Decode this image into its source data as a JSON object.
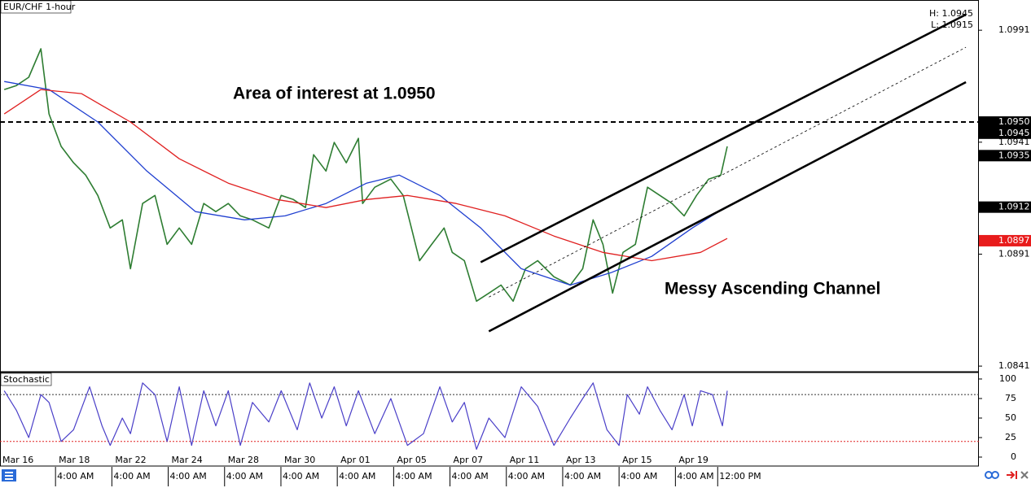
{
  "chart_data": [
    {
      "type": "line",
      "title": "EUR/CHF 1-hour",
      "high_label": "H: 1.0945",
      "low_label": "L: 1.0915",
      "annotations": [
        "Area of interest at 1.0950",
        "Messy Ascending Channel"
      ],
      "xlim": [
        0.03,
        34.77
      ],
      "ylim": [
        1.08385,
        1.10045
      ],
      "xticks": [
        {
          "value": 0,
          "label": "Mar 16"
        },
        {
          "value": 2,
          "label": "Mar 18"
        },
        {
          "value": 4,
          "label": "Mar 22"
        },
        {
          "value": 6,
          "label": "Mar 24"
        },
        {
          "value": 8,
          "label": "Mar 28"
        },
        {
          "value": 10,
          "label": "Mar 30"
        },
        {
          "value": 12,
          "label": "Apr 01"
        },
        {
          "value": 14,
          "label": "Apr 05"
        },
        {
          "value": 16,
          "label": "Apr 07"
        },
        {
          "value": 18,
          "label": "Apr 11"
        },
        {
          "value": 20,
          "label": "Apr 13"
        },
        {
          "value": 22,
          "label": "Apr 15"
        },
        {
          "value": 24,
          "label": "Apr 19"
        }
      ],
      "xticks_time": [
        {
          "value": 2,
          "label": "4:00 AM"
        },
        {
          "value": 4,
          "label": "4:00 AM"
        },
        {
          "value": 6,
          "label": "4:00 AM"
        },
        {
          "value": 8,
          "label": "4:00 AM"
        },
        {
          "value": 10,
          "label": "4:00 AM"
        },
        {
          "value": 12,
          "label": "4:00 AM"
        },
        {
          "value": 14,
          "label": "4:00 AM"
        },
        {
          "value": 16,
          "label": "4:00 AM"
        },
        {
          "value": 18,
          "label": "4:00 AM"
        },
        {
          "value": 20,
          "label": "4:00 AM"
        },
        {
          "value": 22,
          "label": "4:00 AM"
        },
        {
          "value": 24,
          "label": "4:00 AM"
        },
        {
          "value": 25.5,
          "label": "12:00 PM"
        }
      ],
      "yticks": [
        1.0991,
        1.0941,
        1.0891,
        1.0841
      ],
      "price_tags": [
        {
          "value": 1.095,
          "label": "1.0950",
          "color": "#000000"
        },
        {
          "value": 1.0945,
          "label": "1.0945",
          "color": "#000000"
        },
        {
          "value": 1.0935,
          "label": "1.0935",
          "color": "#000000"
        },
        {
          "value": 1.0912,
          "label": "1.0912",
          "color": "#000000"
        },
        {
          "value": 1.0897,
          "label": "1.0897",
          "color": "#e81c1c"
        }
      ],
      "hline": {
        "value": 1.095,
        "color": "#000000"
      },
      "channel": [
        {
          "x": [
            17.09,
            34.31
          ],
          "values": [
            1.08874,
            1.0998
          ],
          "dashed": false
        },
        {
          "x": [
            17.38,
            34.31
          ],
          "values": [
            1.08565,
            1.09678
          ],
          "dashed": false
        },
        {
          "x": [
            17.38,
            34.31
          ],
          "values": [
            1.08718,
            1.09834
          ],
          "dashed": true
        }
      ],
      "series": [
        {
          "color": "#2e7d32",
          "width": 1.6,
          "x": [
            0.18,
            0.61,
            1.05,
            1.48,
            1.77,
            2.2,
            2.64,
            3.07,
            3.5,
            3.94,
            4.37,
            4.66,
            5.09,
            5.53,
            5.96,
            6.39,
            6.83,
            7.26,
            7.69,
            8.13,
            8.56,
            8.99,
            9.57,
            10.01,
            10.44,
            10.87,
            11.16,
            11.6,
            11.89,
            12.32,
            12.75,
            12.9,
            13.33,
            13.9,
            14.34,
            14.63,
            14.92,
            15.35,
            15.79,
            16.08,
            16.51,
            16.94,
            17.38,
            17.81,
            18.24,
            18.68,
            19.11,
            19.69,
            20.27,
            20.71,
            21.08,
            21.43,
            21.77,
            22.14,
            22.58,
            23.01,
            23.45,
            23.88,
            24.31,
            24.75,
            25.18,
            25.61,
            25.84
          ],
          "values": [
            1.09645,
            1.09663,
            1.097,
            1.09827,
            1.09536,
            1.09391,
            1.09318,
            1.09263,
            1.09172,
            1.09027,
            1.09063,
            1.08845,
            1.09136,
            1.09172,
            1.08954,
            1.09027,
            1.08954,
            1.09136,
            1.091,
            1.09136,
            1.09081,
            1.09063,
            1.09027,
            1.09172,
            1.09154,
            1.09118,
            1.09354,
            1.09281,
            1.09409,
            1.09318,
            1.09427,
            1.09136,
            1.09209,
            1.09245,
            1.09172,
            1.09027,
            1.08881,
            1.08954,
            1.09027,
            1.08918,
            1.08881,
            1.087,
            1.08736,
            1.08772,
            1.087,
            1.08845,
            1.08881,
            1.08809,
            1.08772,
            1.08845,
            1.09063,
            1.08954,
            1.08736,
            1.08918,
            1.08954,
            1.09209,
            1.09172,
            1.09136,
            1.09081,
            1.09172,
            1.09245,
            1.09263,
            1.09391
          ]
        },
        {
          "color": "#1f3fd0",
          "width": 1.3,
          "x": [
            0.18,
            1.77,
            3.5,
            5.24,
            6.97,
            8.71,
            10.15,
            11.6,
            13.04,
            14.2,
            15.64,
            17.09,
            18.53,
            20.27,
            21.71,
            23.16,
            24.6,
            25.76
          ],
          "values": [
            1.09681,
            1.09645,
            1.095,
            1.09281,
            1.091,
            1.09063,
            1.09081,
            1.09136,
            1.09227,
            1.09263,
            1.09172,
            1.09027,
            1.08845,
            1.08772,
            1.08827,
            1.089,
            1.09027,
            1.09118
          ]
        },
        {
          "color": "#e02020",
          "width": 1.3,
          "x": [
            0.18,
            1.48,
            2.92,
            4.66,
            6.39,
            8.13,
            9.86,
            11.6,
            13.04,
            14.49,
            16.22,
            17.95,
            19.69,
            21.42,
            23.16,
            24.89,
            25.84
          ],
          "values": [
            1.09536,
            1.09645,
            1.09627,
            1.095,
            1.09336,
            1.09227,
            1.09154,
            1.09118,
            1.09154,
            1.09172,
            1.09136,
            1.09081,
            1.08991,
            1.08918,
            1.08881,
            1.08918,
            1.0898
          ]
        }
      ]
    },
    {
      "type": "line",
      "title": "Stochastic",
      "ylim": [
        -10.4,
        108.3
      ],
      "yticks": [
        0,
        25,
        50,
        75,
        100
      ],
      "levels": [
        {
          "value": 80,
          "color": "#333333"
        },
        {
          "value": 20,
          "color": "#e02020"
        }
      ],
      "series": [
        {
          "color": "#4a3fc8",
          "width": 1.2,
          "x": [
            0.18,
            0.61,
            1.05,
            1.48,
            1.77,
            2.2,
            2.64,
            3.21,
            3.65,
            3.94,
            4.37,
            4.66,
            5.09,
            5.53,
            5.96,
            6.39,
            6.83,
            7.26,
            7.69,
            8.13,
            8.56,
            8.99,
            9.57,
            10.01,
            10.58,
            11.02,
            11.45,
            11.89,
            12.32,
            12.75,
            13.33,
            13.9,
            14.49,
            15.06,
            15.64,
            16.08,
            16.51,
            16.94,
            17.38,
            17.95,
            18.53,
            19.11,
            19.69,
            20.27,
            20.71,
            21.08,
            21.57,
            22,
            22.29,
            22.72,
            23.01,
            23.45,
            23.88,
            24.31,
            24.6,
            24.89,
            25.32,
            25.67,
            25.84
          ],
          "values": [
            85,
            60,
            25,
            80,
            70,
            20,
            35,
            90,
            40,
            15,
            50,
            30,
            95,
            80,
            20,
            90,
            15,
            85,
            40,
            85,
            15,
            70,
            45,
            85,
            35,
            95,
            50,
            90,
            40,
            85,
            30,
            75,
            15,
            30,
            90,
            45,
            70,
            10,
            50,
            25,
            90,
            65,
            15,
            50,
            75,
            95,
            35,
            15,
            80,
            55,
            90,
            60,
            35,
            80,
            40,
            85,
            80,
            40,
            85
          ]
        }
      ]
    }
  ]
}
